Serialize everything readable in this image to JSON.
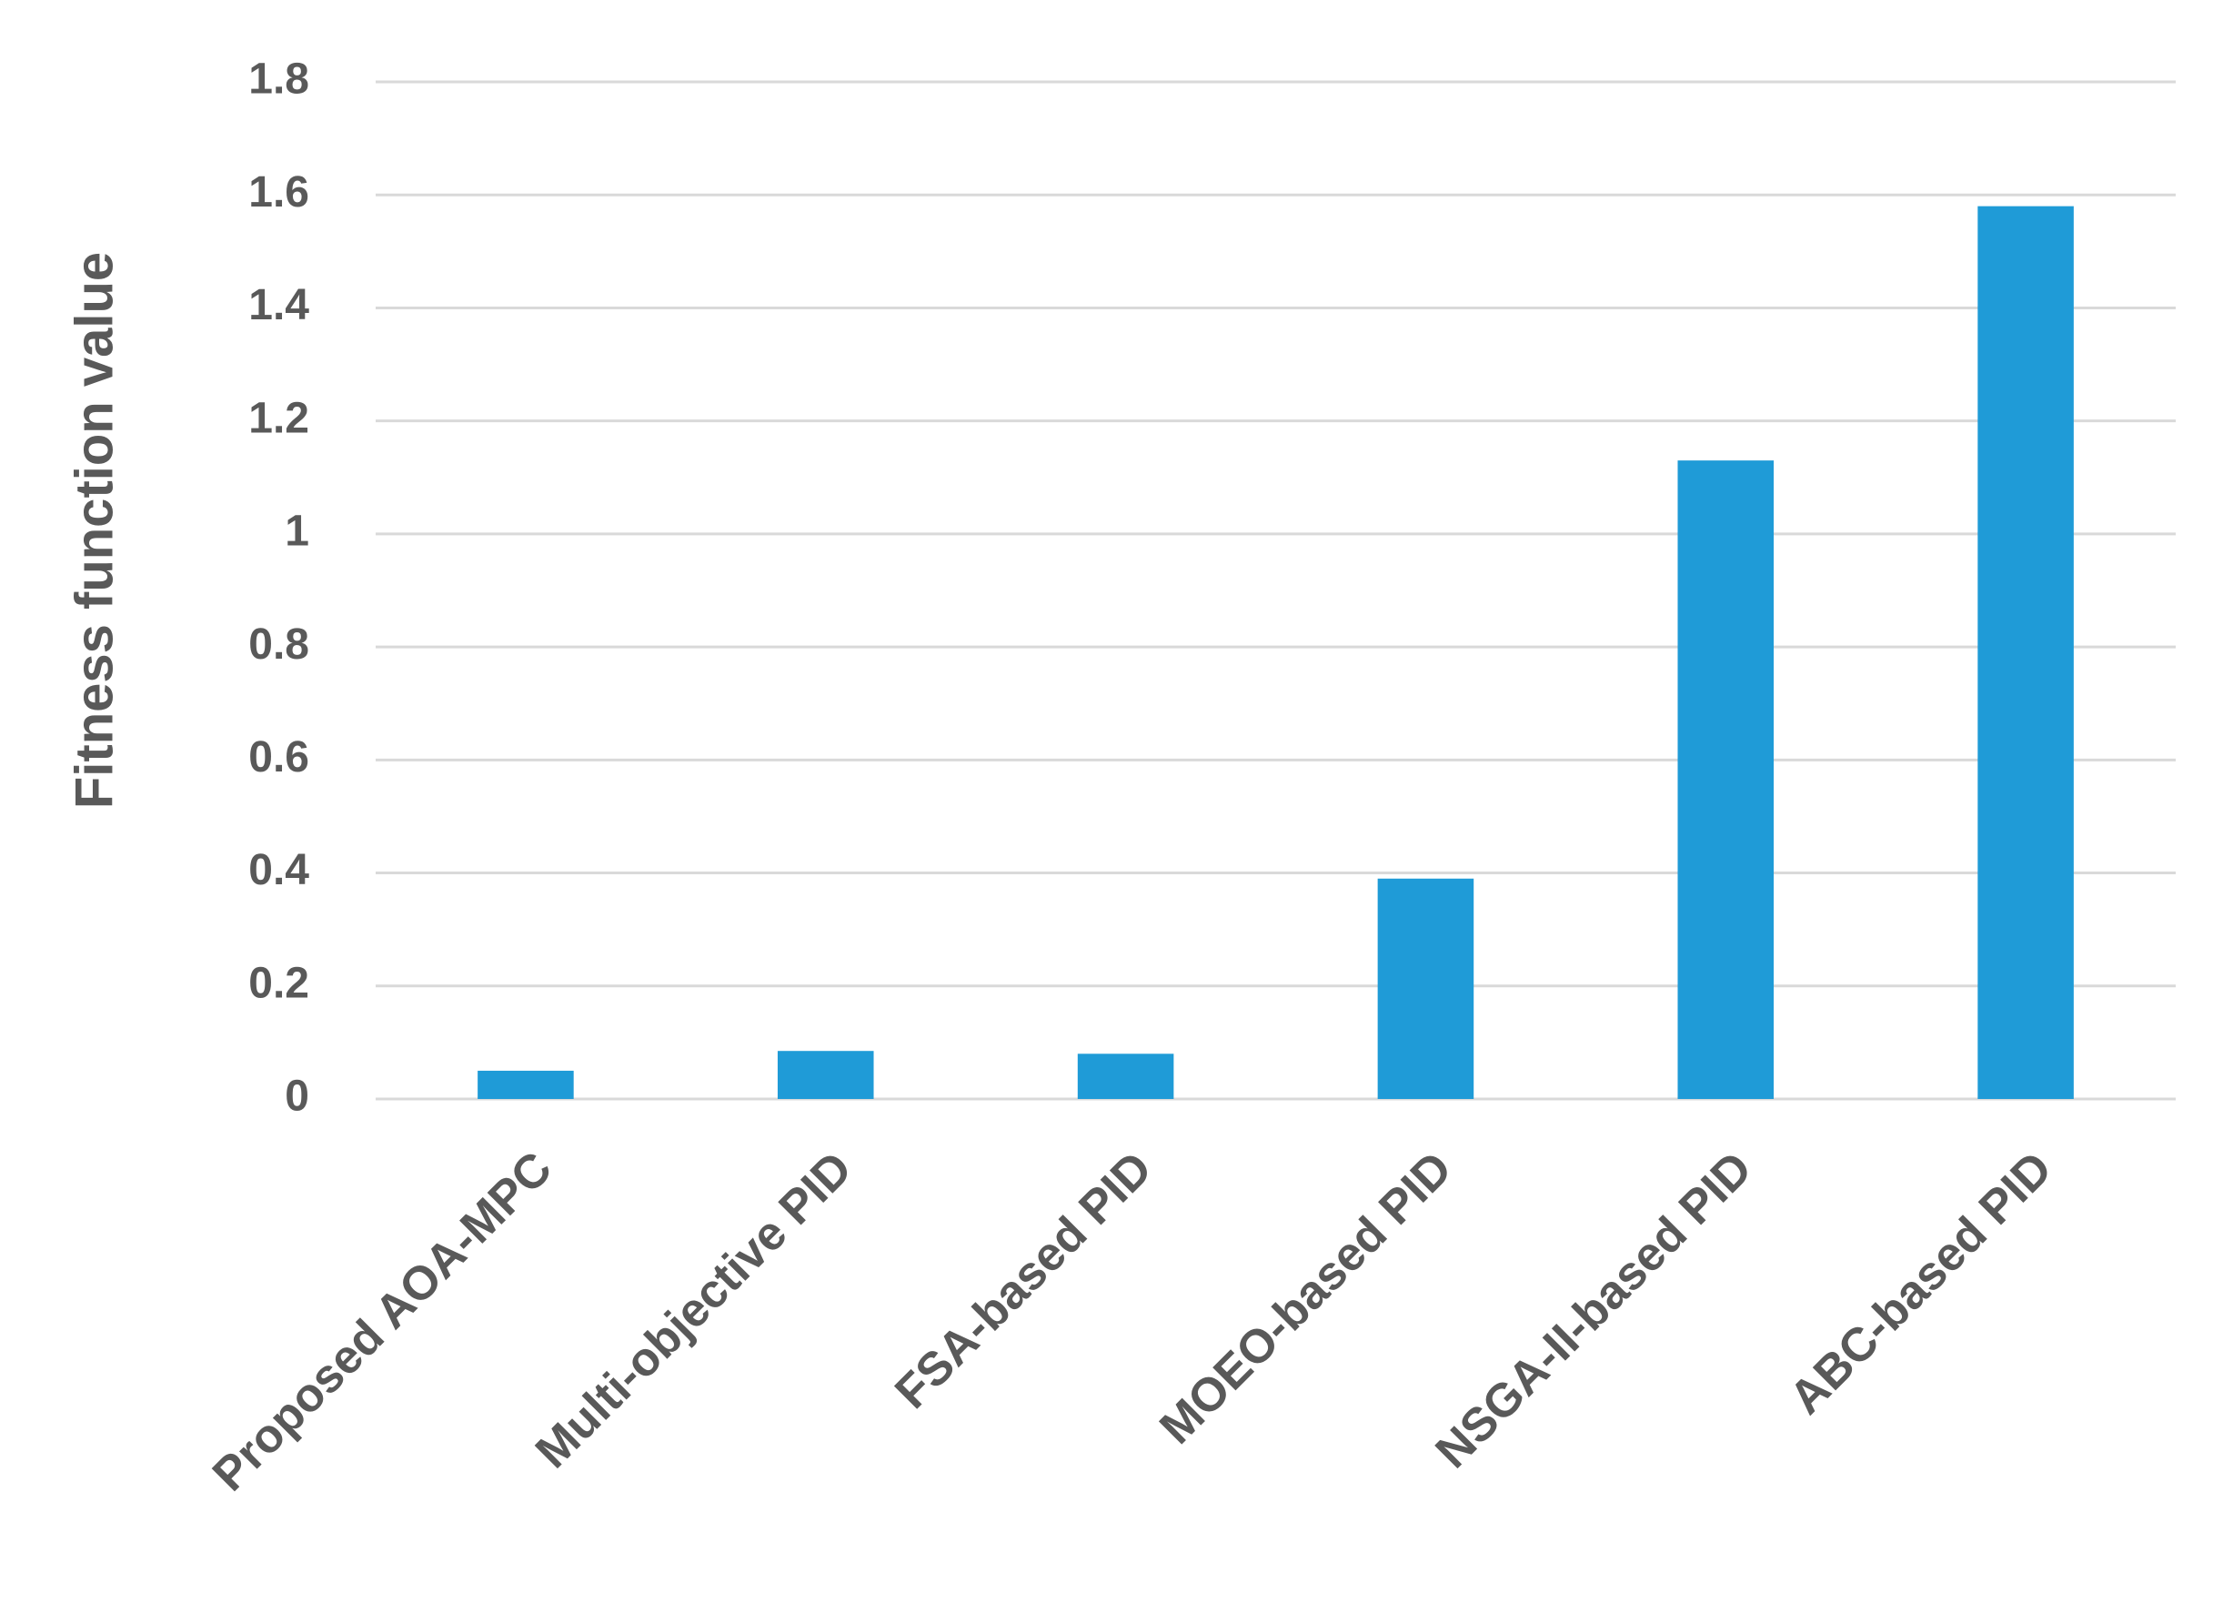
{
  "chart_data": {
    "type": "bar",
    "y_label": "Fitness function value",
    "categories": [
      "Proposed AOA-MPC",
      "Multi-objective PID",
      "FSA-based PID",
      "MOEO-based PID",
      "NSGA-II-based PID",
      "ABC-based PID"
    ],
    "values": [
      0.05,
      0.085,
      0.08,
      0.39,
      1.13,
      1.58
    ],
    "color": "#1f9bd7",
    "ylim": [
      0,
      1.8
    ],
    "yticks": [
      0,
      0.2,
      0.4,
      0.6,
      0.8,
      1,
      1.2,
      1.4,
      1.6,
      1.8
    ],
    "grid": true
  }
}
